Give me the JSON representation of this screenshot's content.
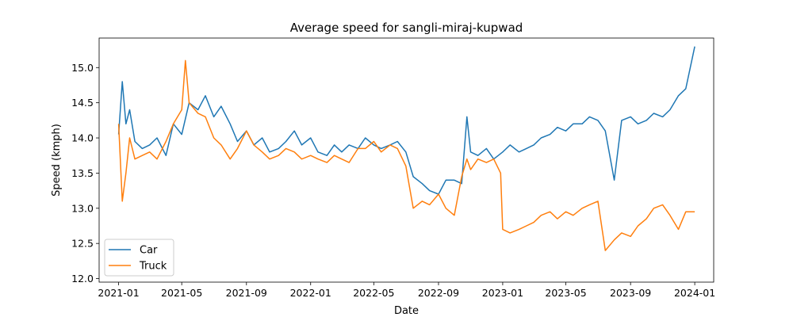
{
  "chart_data": {
    "type": "line",
    "title": "Average speed for sangli-miraj-kupwad",
    "xlabel": "Date",
    "ylabel": "Speed (kmph)",
    "xlim": [
      "2020-11-25",
      "2024-02-06"
    ],
    "ylim": [
      11.95,
      15.42
    ],
    "x_ticks": [
      "2021-01",
      "2021-05",
      "2021-09",
      "2022-01",
      "2022-05",
      "2022-09",
      "2023-01",
      "2023-05",
      "2023-09",
      "2024-01"
    ],
    "y_ticks": [
      "12.0",
      "12.5",
      "13.0",
      "13.5",
      "14.0",
      "14.5",
      "15.0"
    ],
    "legend_position": "lower-left",
    "grid": false,
    "series": [
      {
        "name": "Car",
        "color": "#1f77b4",
        "x": [
          "2021-01-01",
          "2021-01-08",
          "2021-01-15",
          "2021-01-22",
          "2021-02-01",
          "2021-02-15",
          "2021-03-01",
          "2021-03-15",
          "2021-04-01",
          "2021-04-15",
          "2021-05-01",
          "2021-05-15",
          "2021-06-01",
          "2021-06-15",
          "2021-07-01",
          "2021-07-15",
          "2021-08-01",
          "2021-08-15",
          "2021-09-01",
          "2021-09-15",
          "2021-10-01",
          "2021-10-15",
          "2021-11-01",
          "2021-11-15",
          "2021-12-01",
          "2021-12-15",
          "2022-01-01",
          "2022-01-15",
          "2022-02-01",
          "2022-02-15",
          "2022-03-01",
          "2022-03-15",
          "2022-04-01",
          "2022-04-15",
          "2022-05-01",
          "2022-05-15",
          "2022-06-01",
          "2022-06-15",
          "2022-07-01",
          "2022-07-15",
          "2022-08-01",
          "2022-08-15",
          "2022-09-01",
          "2022-09-15",
          "2022-10-01",
          "2022-10-15",
          "2022-10-25",
          "2022-11-01",
          "2022-11-15",
          "2022-12-01",
          "2022-12-15",
          "2023-01-01",
          "2023-01-15",
          "2023-02-01",
          "2023-02-15",
          "2023-03-01",
          "2023-03-15",
          "2023-04-01",
          "2023-04-15",
          "2023-05-01",
          "2023-05-15",
          "2023-06-01",
          "2023-06-15",
          "2023-07-01",
          "2023-07-15",
          "2023-08-01",
          "2023-08-15",
          "2023-09-01",
          "2023-09-15",
          "2023-10-01",
          "2023-10-15",
          "2023-11-01",
          "2023-11-15",
          "2023-12-01",
          "2023-12-15",
          "2024-01-01"
        ],
        "y": [
          14.05,
          14.8,
          14.2,
          14.4,
          13.95,
          13.85,
          13.9,
          14.0,
          13.75,
          14.2,
          14.05,
          14.5,
          14.4,
          14.6,
          14.3,
          14.45,
          14.2,
          13.95,
          14.1,
          13.9,
          14.0,
          13.8,
          13.85,
          13.95,
          14.1,
          13.9,
          14.0,
          13.8,
          13.75,
          13.9,
          13.8,
          13.9,
          13.85,
          14.0,
          13.9,
          13.85,
          13.9,
          13.95,
          13.8,
          13.45,
          13.35,
          13.25,
          13.2,
          13.4,
          13.4,
          13.35,
          14.3,
          13.8,
          13.75,
          13.85,
          13.7,
          13.8,
          13.9,
          13.8,
          13.85,
          13.9,
          14.0,
          14.05,
          14.15,
          14.1,
          14.2,
          14.2,
          14.3,
          14.25,
          14.1,
          13.4,
          14.25,
          14.3,
          14.2,
          14.25,
          14.35,
          14.3,
          14.4,
          14.6,
          14.7,
          15.3
        ]
      },
      {
        "name": "Truck",
        "color": "#ff7f0e",
        "x": [
          "2021-01-01",
          "2021-01-08",
          "2021-01-15",
          "2021-01-22",
          "2021-02-01",
          "2021-02-15",
          "2021-03-01",
          "2021-03-15",
          "2021-04-01",
          "2021-04-15",
          "2021-05-01",
          "2021-05-08",
          "2021-05-15",
          "2021-06-01",
          "2021-06-15",
          "2021-07-01",
          "2021-07-15",
          "2021-08-01",
          "2021-08-15",
          "2021-09-01",
          "2021-09-15",
          "2021-10-01",
          "2021-10-15",
          "2021-11-01",
          "2021-11-15",
          "2021-12-01",
          "2021-12-15",
          "2022-01-01",
          "2022-01-15",
          "2022-02-01",
          "2022-02-15",
          "2022-03-01",
          "2022-03-15",
          "2022-04-01",
          "2022-04-15",
          "2022-05-01",
          "2022-05-15",
          "2022-06-01",
          "2022-06-15",
          "2022-07-01",
          "2022-07-15",
          "2022-08-01",
          "2022-08-15",
          "2022-09-01",
          "2022-09-15",
          "2022-10-01",
          "2022-10-15",
          "2022-10-25",
          "2022-11-01",
          "2022-11-15",
          "2022-12-01",
          "2022-12-15",
          "2022-12-28",
          "2023-01-01",
          "2023-01-15",
          "2023-02-01",
          "2023-02-15",
          "2023-03-01",
          "2023-03-15",
          "2023-04-01",
          "2023-04-15",
          "2023-05-01",
          "2023-05-15",
          "2023-06-01",
          "2023-06-15",
          "2023-07-01",
          "2023-07-15",
          "2023-08-01",
          "2023-08-15",
          "2023-09-01",
          "2023-09-15",
          "2023-10-01",
          "2023-10-15",
          "2023-11-01",
          "2023-11-15",
          "2023-12-01",
          "2023-12-15",
          "2024-01-01"
        ],
        "y": [
          14.2,
          13.1,
          13.5,
          14.0,
          13.7,
          13.75,
          13.8,
          13.7,
          13.95,
          14.2,
          14.4,
          15.1,
          14.5,
          14.35,
          14.3,
          14.0,
          13.9,
          13.7,
          13.85,
          14.1,
          13.9,
          13.8,
          13.7,
          13.75,
          13.85,
          13.8,
          13.7,
          13.75,
          13.7,
          13.65,
          13.75,
          13.7,
          13.65,
          13.85,
          13.85,
          13.95,
          13.8,
          13.9,
          13.85,
          13.6,
          13.0,
          13.1,
          13.05,
          13.2,
          13.0,
          12.9,
          13.45,
          13.7,
          13.55,
          13.7,
          13.65,
          13.7,
          13.5,
          12.7,
          12.65,
          12.7,
          12.75,
          12.8,
          12.9,
          12.95,
          12.85,
          12.95,
          12.9,
          13.0,
          13.05,
          13.1,
          12.4,
          12.55,
          12.65,
          12.6,
          12.75,
          12.85,
          13.0,
          13.05,
          12.9,
          12.7,
          12.95,
          12.95
        ]
      }
    ]
  }
}
